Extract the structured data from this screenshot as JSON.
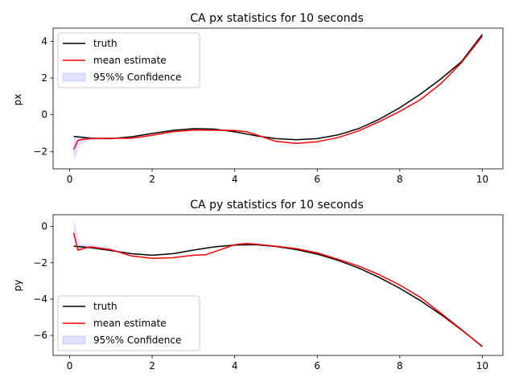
{
  "chart_data": [
    {
      "type": "line",
      "title": "CA px statistics for 10 seconds",
      "xlabel": "",
      "ylabel": "px",
      "xlim": [
        -0.4,
        10.5
      ],
      "ylim": [
        -2.95,
        4.72
      ],
      "xticks": [
        0,
        2,
        4,
        6,
        8,
        10
      ],
      "yticks": [
        -2,
        0,
        2,
        4
      ],
      "grid": false,
      "legend_position": "upper-left",
      "legend": [
        "truth",
        "mean estimate",
        "95%% Confidence"
      ],
      "series": [
        {
          "name": "truth",
          "color": "#000000",
          "points": [
            [
              0.1,
              -1.18
            ],
            [
              0.5,
              -1.28
            ],
            [
              1.0,
              -1.3
            ],
            [
              1.5,
              -1.2
            ],
            [
              2.0,
              -1.02
            ],
            [
              2.5,
              -0.85
            ],
            [
              3.0,
              -0.76
            ],
            [
              3.5,
              -0.78
            ],
            [
              4.0,
              -0.93
            ],
            [
              4.5,
              -1.14
            ],
            [
              5.0,
              -1.3
            ],
            [
              5.5,
              -1.36
            ],
            [
              6.0,
              -1.3
            ],
            [
              6.5,
              -1.1
            ],
            [
              7.0,
              -0.76
            ],
            [
              7.5,
              -0.25
            ],
            [
              8.0,
              0.38
            ],
            [
              8.5,
              1.12
            ],
            [
              9.0,
              1.96
            ],
            [
              9.5,
              2.9
            ],
            [
              10.0,
              4.38
            ]
          ]
        },
        {
          "name": "mean estimate",
          "color": "#ff0000",
          "points": [
            [
              0.1,
              -1.9
            ],
            [
              0.2,
              -1.4
            ],
            [
              0.3,
              -1.35
            ],
            [
              0.5,
              -1.3
            ],
            [
              1.0,
              -1.28
            ],
            [
              1.5,
              -1.28
            ],
            [
              2.0,
              -1.12
            ],
            [
              2.5,
              -0.92
            ],
            [
              3.0,
              -0.84
            ],
            [
              3.5,
              -0.84
            ],
            [
              4.0,
              -0.86
            ],
            [
              4.3,
              -0.93
            ],
            [
              4.6,
              -1.15
            ],
            [
              5.0,
              -1.45
            ],
            [
              5.5,
              -1.56
            ],
            [
              6.0,
              -1.47
            ],
            [
              6.5,
              -1.25
            ],
            [
              7.0,
              -0.88
            ],
            [
              7.5,
              -0.38
            ],
            [
              8.0,
              0.18
            ],
            [
              8.5,
              0.82
            ],
            [
              9.0,
              1.7
            ],
            [
              9.5,
              2.85
            ],
            [
              10.0,
              4.28
            ]
          ]
        },
        {
          "name": "95%% Confidence",
          "color": "#0000ff",
          "band": [
            [
              0.1,
              -2.5,
              -1.3
            ],
            [
              0.25,
              -1.65,
              -1.15
            ],
            [
              0.5,
              -1.4,
              -1.2
            ],
            [
              1.0,
              -1.35,
              -1.22
            ]
          ]
        }
      ]
    },
    {
      "type": "line",
      "title": "CA py statistics for 10 seconds",
      "xlabel": "",
      "ylabel": "py",
      "xlim": [
        -0.4,
        10.5
      ],
      "ylim": [
        -7.1,
        0.65
      ],
      "xticks": [
        0,
        2,
        4,
        6,
        8,
        10
      ],
      "yticks": [
        -6,
        -4,
        -2,
        0
      ],
      "grid": false,
      "legend_position": "lower-left",
      "legend": [
        "truth",
        "mean estimate",
        "95%% Confidence"
      ],
      "series": [
        {
          "name": "truth",
          "color": "#000000",
          "points": [
            [
              0.1,
              -1.08
            ],
            [
              0.5,
              -1.16
            ],
            [
              1.0,
              -1.32
            ],
            [
              1.5,
              -1.5
            ],
            [
              2.0,
              -1.58
            ],
            [
              2.5,
              -1.5
            ],
            [
              3.0,
              -1.3
            ],
            [
              3.5,
              -1.12
            ],
            [
              4.0,
              -1.02
            ],
            [
              4.5,
              -1.0
            ],
            [
              5.0,
              -1.1
            ],
            [
              5.5,
              -1.27
            ],
            [
              6.0,
              -1.52
            ],
            [
              6.5,
              -1.86
            ],
            [
              7.0,
              -2.28
            ],
            [
              7.5,
              -2.8
            ],
            [
              8.0,
              -3.4
            ],
            [
              8.5,
              -4.08
            ],
            [
              9.0,
              -4.85
            ],
            [
              9.5,
              -5.7
            ],
            [
              10.0,
              -6.6
            ]
          ]
        },
        {
          "name": "mean estimate",
          "color": "#ff0000",
          "points": [
            [
              0.1,
              -0.35
            ],
            [
              0.2,
              -1.3
            ],
            [
              0.35,
              -1.2
            ],
            [
              0.5,
              -1.12
            ],
            [
              1.0,
              -1.27
            ],
            [
              1.5,
              -1.62
            ],
            [
              2.0,
              -1.75
            ],
            [
              2.5,
              -1.72
            ],
            [
              3.0,
              -1.58
            ],
            [
              3.3,
              -1.55
            ],
            [
              3.5,
              -1.4
            ],
            [
              4.0,
              -1.0
            ],
            [
              4.3,
              -0.93
            ],
            [
              4.5,
              -0.97
            ],
            [
              5.0,
              -1.08
            ],
            [
              5.5,
              -1.22
            ],
            [
              6.0,
              -1.45
            ],
            [
              6.5,
              -1.8
            ],
            [
              7.0,
              -2.17
            ],
            [
              7.5,
              -2.65
            ],
            [
              8.0,
              -3.22
            ],
            [
              8.5,
              -3.9
            ],
            [
              9.0,
              -4.78
            ],
            [
              9.5,
              -5.68
            ],
            [
              10.0,
              -6.62
            ]
          ]
        },
        {
          "name": "95%% Confidence",
          "color": "#0000ff",
          "band": [
            [
              0.1,
              -0.6,
              0.35
            ],
            [
              0.25,
              -1.4,
              -0.95
            ],
            [
              0.5,
              -1.25,
              -1.0
            ],
            [
              1.0,
              -1.35,
              -1.18
            ]
          ]
        }
      ]
    }
  ]
}
